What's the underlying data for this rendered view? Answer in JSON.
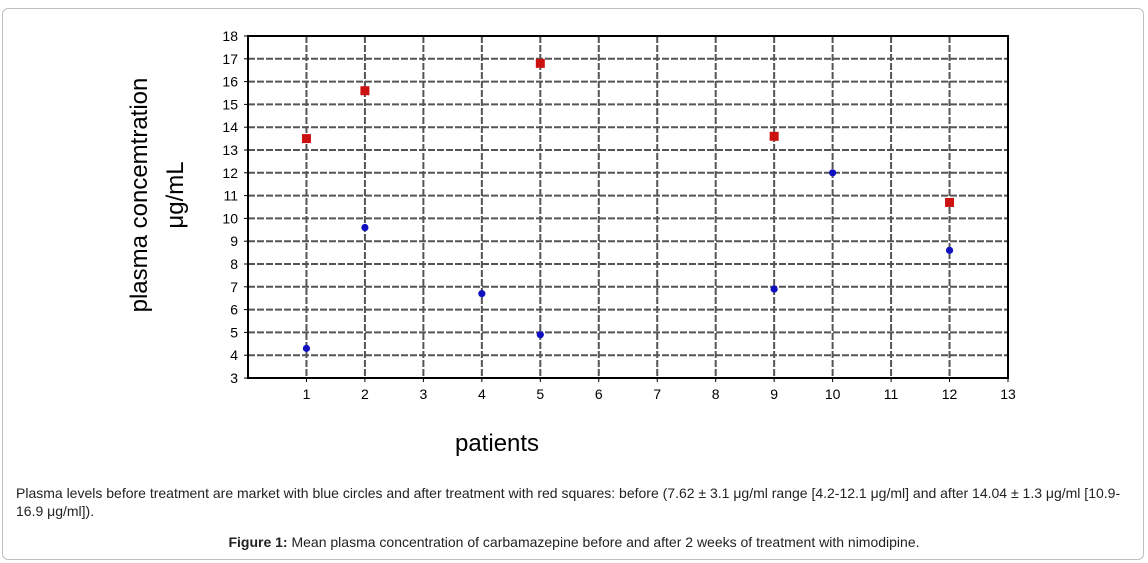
{
  "chart_data": {
    "type": "scatter",
    "title": "",
    "xlabel": "patients",
    "ylabel": [
      "plasma concemtration",
      "μg/mL"
    ],
    "xlim": [
      0,
      13
    ],
    "ylim": [
      3,
      18
    ],
    "x_ticks": [
      1,
      2,
      3,
      4,
      5,
      6,
      7,
      8,
      9,
      10,
      11,
      12,
      13
    ],
    "y_ticks": [
      3,
      4,
      5,
      6,
      7,
      8,
      9,
      10,
      11,
      12,
      13,
      14,
      15,
      16,
      17,
      18
    ],
    "grid": true,
    "series": [
      {
        "marker": "circle",
        "color": "#1010c0",
        "points": [
          {
            "x": 1,
            "y": 4.3
          },
          {
            "x": 2,
            "y": 9.6
          },
          {
            "x": 4,
            "y": 6.7
          },
          {
            "x": 5,
            "y": 4.9
          },
          {
            "x": 9,
            "y": 6.9
          },
          {
            "x": 10,
            "y": 12.0
          },
          {
            "x": 12,
            "y": 8.6
          }
        ]
      },
      {
        "marker": "square",
        "color": "#cc1111",
        "points": [
          {
            "x": 1,
            "y": 13.5
          },
          {
            "x": 2,
            "y": 15.6
          },
          {
            "x": 5,
            "y": 16.8
          },
          {
            "x": 9,
            "y": 13.6
          },
          {
            "x": 12,
            "y": 10.7
          }
        ]
      }
    ]
  },
  "note": "Plasma levels before treatment are market with blue circles and after treatment with red squares: before (7.62 ± 3.1 μg/ml range [4.2-12.1 μg/ml] and after 14.04 ± 1.3 μg/ml [10.9-16.9 μg/ml]).",
  "caption": {
    "label": "Figure 1:",
    "text": " Mean plasma concentration of carbamazepine before and after 2 weeks of treatment with nimodipine."
  }
}
